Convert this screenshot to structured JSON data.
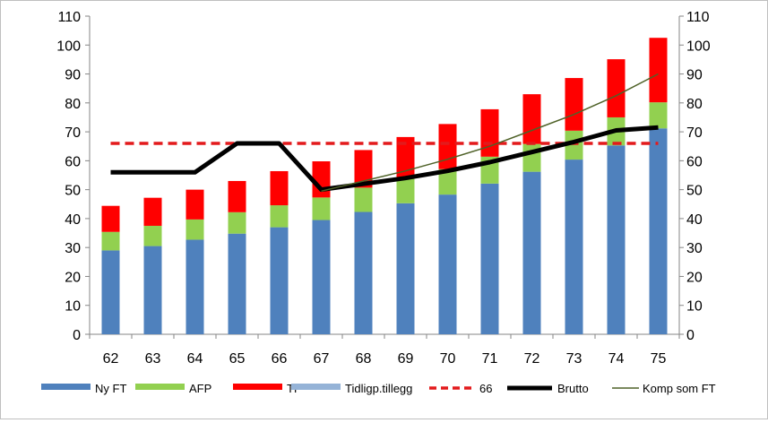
{
  "chart_data": {
    "type": "bar",
    "stacked": true,
    "categories": [
      "62",
      "63",
      "64",
      "65",
      "66",
      "67",
      "68",
      "69",
      "70",
      "71",
      "72",
      "73",
      "74",
      "75"
    ],
    "series": [
      {
        "name": "Ny FT",
        "kind": "bar",
        "color": "#4f81bd",
        "values": [
          29,
          30.5,
          32.7,
          34.8,
          37,
          39.5,
          42.3,
          45.3,
          48.3,
          52.1,
          56.2,
          60.4,
          65.3,
          71.2
        ]
      },
      {
        "name": "AFP",
        "kind": "bar",
        "color": "#92d050",
        "values": [
          6.4,
          7,
          7,
          7.4,
          7.6,
          7.8,
          8.4,
          8.7,
          8.8,
          9.3,
          9.6,
          10,
          9.7,
          9
        ]
      },
      {
        "name": "TP",
        "kind": "bar",
        "color": "#ff0000",
        "values": [
          9,
          9.7,
          10.3,
          10.8,
          11.8,
          12.5,
          13,
          14.2,
          15.6,
          16.4,
          17.2,
          18.2,
          20.1,
          22.3
        ]
      },
      {
        "name": "Tidligp.tillegg",
        "kind": "bar",
        "color": "#95b3d7",
        "values": [
          0,
          0,
          0,
          0,
          0,
          0,
          0,
          0,
          0,
          0,
          0,
          0,
          0,
          0
        ]
      },
      {
        "name": "66",
        "kind": "dashed-line",
        "color": "#e31a1c",
        "values": [
          66,
          66,
          66,
          66,
          66,
          66,
          66,
          66,
          66,
          66,
          66,
          66,
          66,
          66
        ]
      },
      {
        "name": "Brutto",
        "kind": "line",
        "color": "#000000",
        "values": [
          56,
          56,
          56,
          66,
          66,
          50,
          52,
          54,
          56.5,
          59.5,
          63,
          66.5,
          70.5,
          71.5
        ]
      },
      {
        "name": "Komp som FT",
        "kind": "thin-line",
        "color": "#4f6228",
        "values": [
          null,
          null,
          null,
          null,
          null,
          49.5,
          53,
          56.5,
          60.5,
          65,
          70.5,
          76,
          82.5,
          90
        ]
      }
    ],
    "title": "",
    "xlabel": "",
    "ylabel": "",
    "ylim": [
      0,
      110
    ],
    "y_ticks": [
      "0",
      "10",
      "20",
      "30",
      "40",
      "50",
      "60",
      "70",
      "80",
      "90",
      "100",
      "110"
    ],
    "y2_ticks": [
      "0",
      "10",
      "20",
      "30",
      "40",
      "50",
      "60",
      "70",
      "80",
      "90",
      "100",
      "110"
    ],
    "grid": false,
    "legend_position": "bottom"
  }
}
